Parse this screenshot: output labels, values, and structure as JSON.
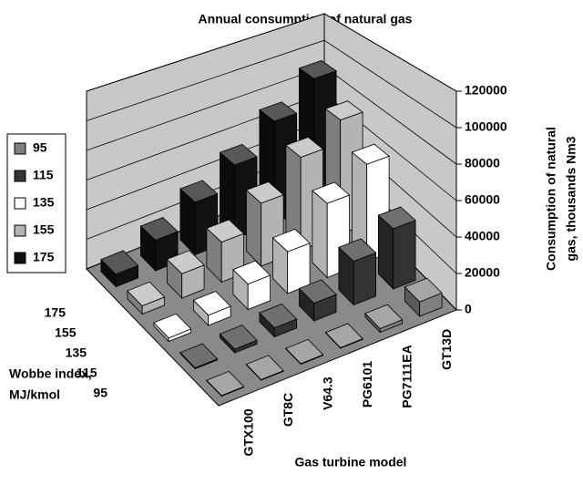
{
  "chart_data": {
    "type": "bar3d",
    "title": "Annual consumption of natural gas",
    "x_label": "Gas turbine model",
    "depth_label": [
      "Wobbe index,",
      "MJ/kmol"
    ],
    "y_label": [
      "Consumption of natural",
      "gas, thousands Nm3"
    ],
    "categories": [
      "GTX100",
      "GT8C",
      "V64.3",
      "PG6101",
      "PG7111EA",
      "GT13D"
    ],
    "series": [
      {
        "name": "95",
        "color": "#808080",
        "values": [
          300,
          300,
          300,
          300,
          2000,
          8000
        ]
      },
      {
        "name": "115",
        "color": "#333333",
        "values": [
          500,
          2000,
          5000,
          10000,
          25000,
          35000
        ]
      },
      {
        "name": "135",
        "color": "#ffffff",
        "values": [
          2000,
          6000,
          15000,
          25000,
          45000,
          60000
        ]
      },
      {
        "name": "155",
        "color": "#b4b4b4",
        "values": [
          5000,
          15000,
          25000,
          40000,
          60000,
          75000
        ]
      },
      {
        "name": "175",
        "color": "#111111",
        "values": [
          8000,
          20000,
          35000,
          50000,
          70000,
          90000
        ]
      }
    ],
    "ylim": [
      0,
      120000
    ],
    "yticks": [
      0,
      20000,
      40000,
      60000,
      80000,
      100000,
      120000
    ],
    "grid": true,
    "legend": "left"
  }
}
